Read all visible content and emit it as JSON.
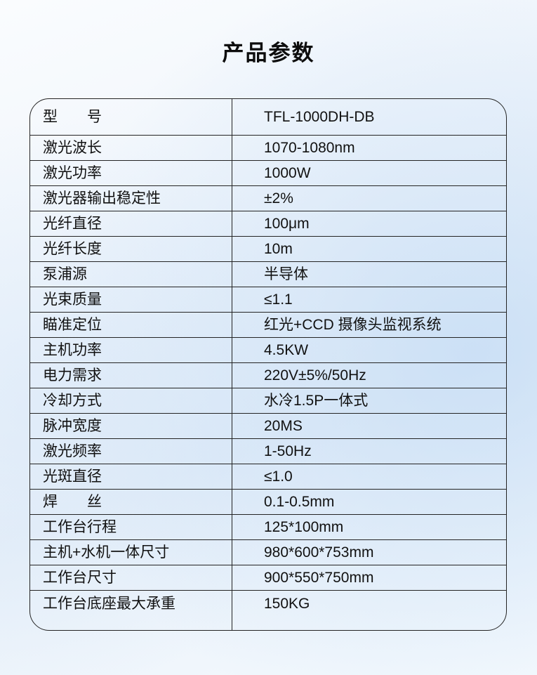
{
  "title": "产品参数",
  "table": {
    "rows": [
      {
        "label": "型　　号",
        "value": "TFL-1000DH-DB"
      },
      {
        "label": "激光波长",
        "value": "1070-1080nm"
      },
      {
        "label": "激光功率",
        "value": "1000W"
      },
      {
        "label": "激光器输出稳定性",
        "value": "±2%"
      },
      {
        "label": "光纤直径",
        "value": "100μm"
      },
      {
        "label": "光纤长度",
        "value": "10m"
      },
      {
        "label": "泵浦源",
        "value": "半导体"
      },
      {
        "label": "光束质量",
        "value": "≤1.1"
      },
      {
        "label": "瞄准定位",
        "value": "红光+CCD 摄像头监视系统"
      },
      {
        "label": "主机功率",
        "value": "4.5KW"
      },
      {
        "label": "电力需求",
        "value": "220V±5%/50Hz"
      },
      {
        "label": "冷却方式",
        "value": "水冷1.5P一体式"
      },
      {
        "label": "脉冲宽度",
        "value": "20MS"
      },
      {
        "label": "激光频率",
        "value": "1-50Hz"
      },
      {
        "label": "光斑直径",
        "value": "≤1.0"
      },
      {
        "label": "焊　　丝",
        "value": "0.1-0.5mm"
      },
      {
        "label": "工作台行程",
        "value": "125*100mm"
      },
      {
        "label": "主机+水机一体尺寸",
        "value": "980*600*753mm"
      },
      {
        "label": "工作台尺寸",
        "value": "900*550*750mm"
      },
      {
        "label": "工作台底座最大承重",
        "value": "150KG"
      }
    ]
  },
  "colors": {
    "text": "#111111",
    "table_border": "#242424",
    "background_tint": "#e6eff9"
  }
}
